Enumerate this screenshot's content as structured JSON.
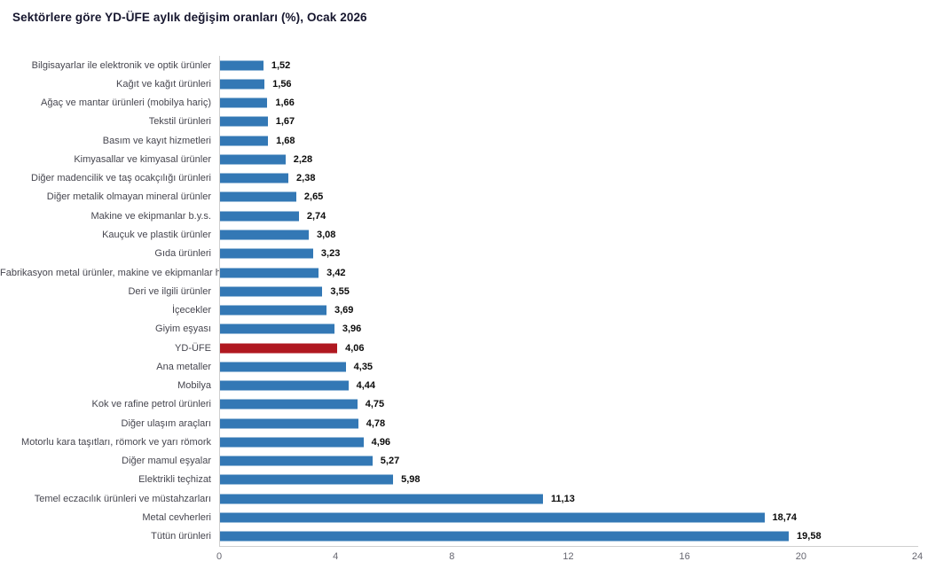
{
  "chart_data": {
    "type": "bar",
    "orientation": "horizontal",
    "title": "Sektörlere göre YD-ÜFE aylık değişim oranları (%), Ocak 2026",
    "categories": [
      "Bilgisayarlar ile elektronik ve optik ürünler",
      "Kağıt ve kağıt ürünleri",
      "Ağaç ve mantar ürünleri (mobilya hariç)",
      "Tekstil ürünleri",
      "Basım ve kayıt hizmetleri",
      "Kimyasallar ve kimyasal ürünler",
      "Diğer madencilik ve taş ocakçılığı ürünleri",
      "Diğer metalik olmayan mineral ürünler",
      "Makine ve ekipmanlar b.y.s.",
      "Kauçuk ve plastik ürünler",
      "Gıda ürünleri",
      "Fabrikasyon metal ürünler, makine ve ekipmanlar hariç",
      "Deri ve ilgili ürünler",
      "İçecekler",
      "Giyim eşyası",
      "YD-ÜFE",
      "Ana metaller",
      "Mobilya",
      "Kok ve rafine petrol ürünleri",
      "Diğer ulaşım araçları",
      "Motorlu kara taşıtları, römork ve yarı römork",
      "Diğer mamul eşyalar",
      "Elektrikli teçhizat",
      "Temel eczacılık ürünleri ve müstahzarları",
      "Metal cevherleri",
      "Tütün ürünleri"
    ],
    "values": [
      1.52,
      1.56,
      1.66,
      1.67,
      1.68,
      2.28,
      2.38,
      2.65,
      2.74,
      3.08,
      3.23,
      3.42,
      3.55,
      3.69,
      3.96,
      4.06,
      4.35,
      4.44,
      4.75,
      4.78,
      4.96,
      5.27,
      5.98,
      11.13,
      18.74,
      19.58
    ],
    "value_labels": [
      "1,52",
      "1,56",
      "1,66",
      "1,67",
      "1,68",
      "2,28",
      "2,38",
      "2,65",
      "2,74",
      "3,08",
      "3,23",
      "3,42",
      "3,55",
      "3,69",
      "3,96",
      "4,06",
      "4,35",
      "4,44",
      "4,75",
      "4,78",
      "4,96",
      "5,27",
      "5,98",
      "11,13",
      "18,74",
      "19,58"
    ],
    "highlight_category": "YD-ÜFE",
    "highlight_index": 15,
    "bar_color": "#3378b5",
    "highlight_color": "#b01820",
    "xlabel": "",
    "ylabel": "",
    "xlim": [
      0,
      24
    ],
    "x_ticks": [
      "0",
      "4",
      "8",
      "12",
      "16",
      "20",
      "24"
    ],
    "grid": false,
    "legend": false
  }
}
